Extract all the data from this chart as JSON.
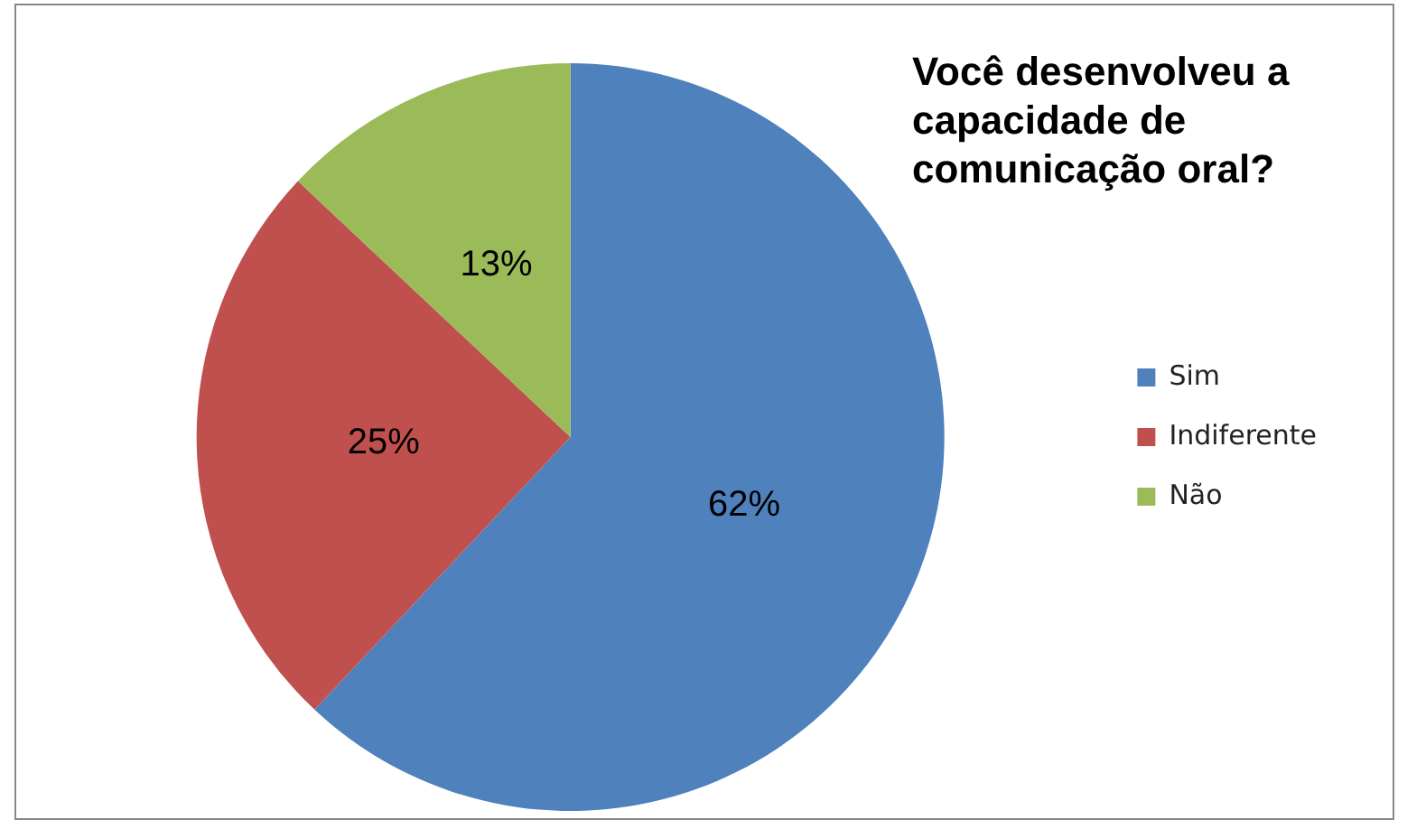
{
  "chart_data": {
    "type": "pie",
    "title": "Você desenvolveu a capacidade de comunicação oral?",
    "categories": [
      "Sim",
      "Indiferente",
      "Não"
    ],
    "values": [
      62,
      25,
      13
    ],
    "value_labels": [
      "62%",
      "25%",
      "13%"
    ],
    "colors": [
      "#4f81bd",
      "#c0504d",
      "#9bbb59"
    ],
    "legend": "right"
  }
}
